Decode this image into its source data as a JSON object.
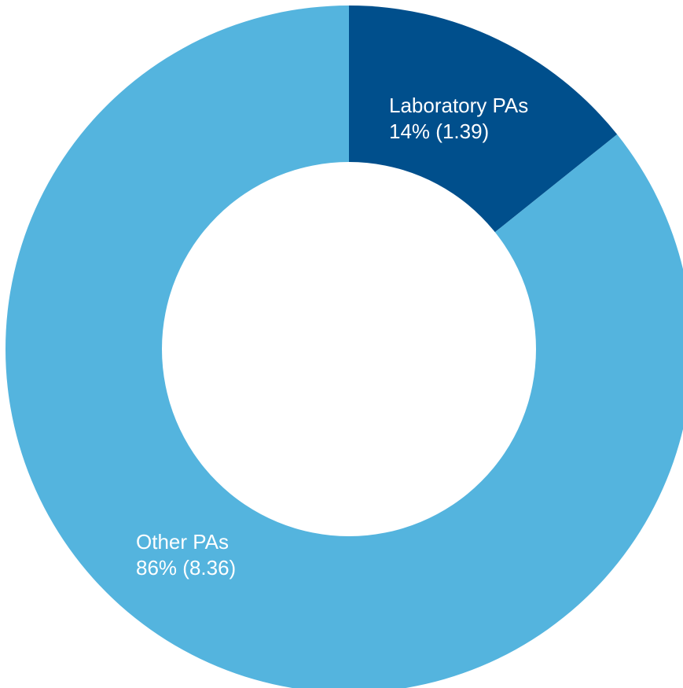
{
  "chart_data": {
    "type": "pie",
    "variant": "donut",
    "categories": [
      "Laboratory PAs",
      "Other PAs"
    ],
    "values": [
      1.39,
      8.36
    ],
    "percent_labels": [
      "14%",
      "86%"
    ],
    "value_labels": [
      "(1.39)",
      "(8.36)"
    ],
    "colors": [
      "#004f8c",
      "#54b4de"
    ],
    "title": "",
    "legend": "none"
  }
}
